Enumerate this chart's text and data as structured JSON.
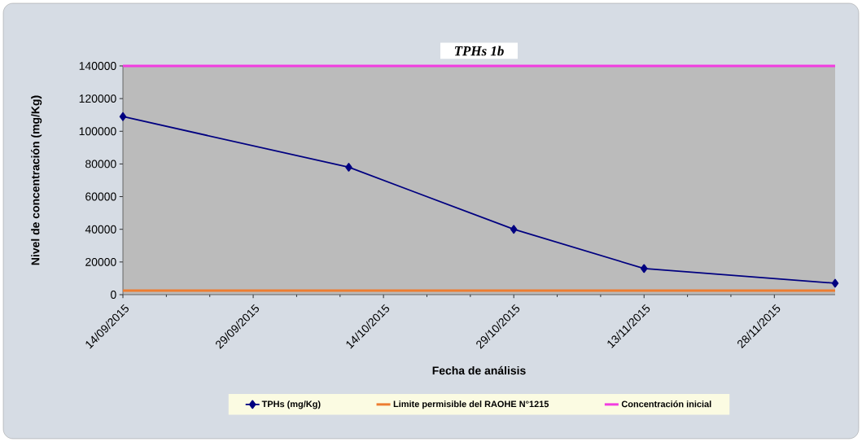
{
  "chart_data": {
    "type": "line",
    "title": "TPHs 1b",
    "xlabel": "Fecha de análisis",
    "ylabel": "Nivel de concentración (mg/Kg)",
    "x": [
      "2015-09-14",
      "2015-10-10",
      "2015-10-29",
      "2015-11-13",
      "2015-12-05"
    ],
    "series": [
      {
        "name": "TPHs (mg/Kg)",
        "color": "#000080",
        "marker": "diamond",
        "values": [
          109000,
          78000,
          40000,
          16000,
          7000
        ]
      },
      {
        "name": "Limite permisible del RAOHE N°1215",
        "color": "#ed7d31",
        "marker": "none",
        "values": [
          2500,
          2500,
          2500,
          2500,
          2500
        ]
      },
      {
        "name": "Concentración inicial",
        "color": "#f23ce0",
        "marker": "none",
        "values": [
          140000,
          140000,
          140000,
          140000,
          140000
        ]
      }
    ],
    "xlim": [
      "2015-09-14",
      "2015-12-05"
    ],
    "xticks": [
      {
        "value": "2015-09-14",
        "label": "14/09/2015"
      },
      {
        "value": "2015-09-29",
        "label": "29/09/2015"
      },
      {
        "value": "2015-10-14",
        "label": "14/10/2015"
      },
      {
        "value": "2015-10-29",
        "label": "29/10/2015"
      },
      {
        "value": "2015-11-13",
        "label": "13/11/2015"
      },
      {
        "value": "2015-11-28",
        "label": "28/11/2015"
      }
    ],
    "ylim": [
      0,
      140000
    ],
    "yticks": [
      0,
      20000,
      40000,
      60000,
      80000,
      100000,
      120000,
      140000
    ],
    "legend": "bottom",
    "line_style": "solid"
  }
}
